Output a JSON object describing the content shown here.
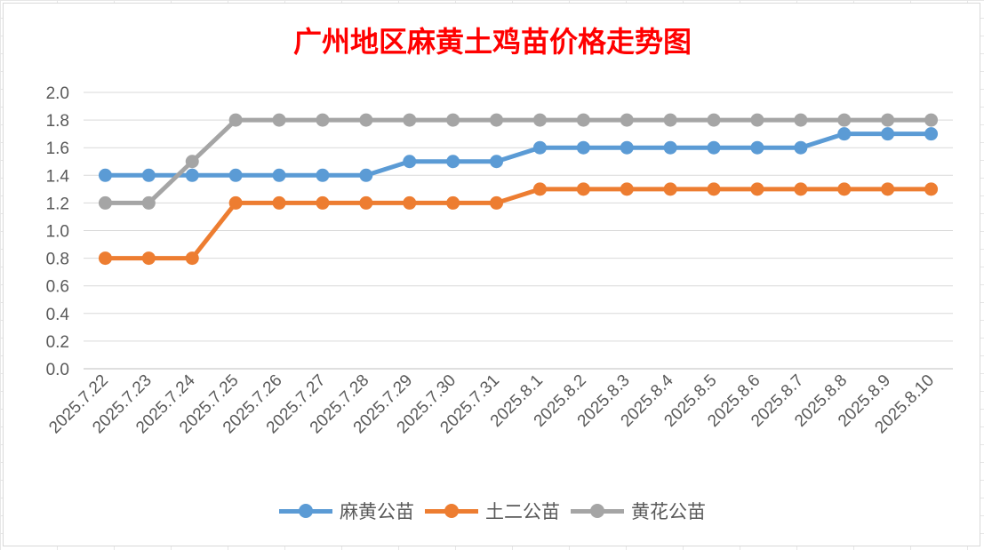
{
  "chart_data": {
    "type": "line",
    "title": "广州地区麻黄土鸡苗价格走势图",
    "xlabel": "",
    "ylabel": "",
    "ylim": [
      0,
      2.0
    ],
    "yticks": [
      "0.0",
      "0.2",
      "0.4",
      "0.6",
      "0.8",
      "1.0",
      "1.2",
      "1.4",
      "1.6",
      "1.8",
      "2.0"
    ],
    "grid": true,
    "legend_position": "bottom",
    "categories": [
      "2025.7.22",
      "2025.7.23",
      "2025.7.24",
      "2025.7.25",
      "2025.7.26",
      "2025.7.27",
      "2025.7.28",
      "2025.7.29",
      "2025.7.30",
      "2025.7.31",
      "2025.8.1",
      "2025.8.2",
      "2025.8.3",
      "2025.8.4",
      "2025.8.5",
      "2025.8.6",
      "2025.8.7",
      "2025.8.8",
      "2025.8.9",
      "2025.8.10"
    ],
    "series": [
      {
        "name": "麻黄公苗",
        "color": "#5b9bd5",
        "values": [
          1.4,
          1.4,
          1.4,
          1.4,
          1.4,
          1.4,
          1.4,
          1.5,
          1.5,
          1.5,
          1.6,
          1.6,
          1.6,
          1.6,
          1.6,
          1.6,
          1.6,
          1.7,
          1.7,
          1.7
        ]
      },
      {
        "name": "土二公苗",
        "color": "#ed7d31",
        "values": [
          0.8,
          0.8,
          0.8,
          1.2,
          1.2,
          1.2,
          1.2,
          1.2,
          1.2,
          1.2,
          1.3,
          1.3,
          1.3,
          1.3,
          1.3,
          1.3,
          1.3,
          1.3,
          1.3,
          1.3
        ]
      },
      {
        "name": "黄花公苗",
        "color": "#a5a5a5",
        "values": [
          1.2,
          1.2,
          1.5,
          1.8,
          1.8,
          1.8,
          1.8,
          1.8,
          1.8,
          1.8,
          1.8,
          1.8,
          1.8,
          1.8,
          1.8,
          1.8,
          1.8,
          1.8,
          1.8,
          1.8
        ]
      }
    ]
  }
}
